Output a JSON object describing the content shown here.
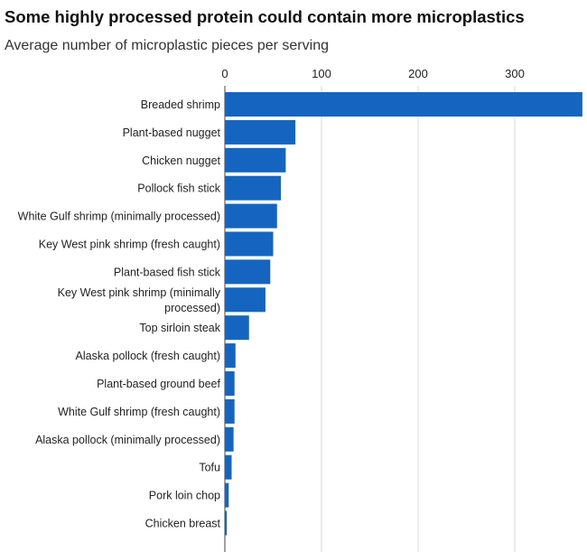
{
  "title": "Some highly processed protein could contain more microplastics",
  "subtitle": "Average number of microplastic pieces per serving",
  "chart_data": {
    "type": "bar",
    "orientation": "horizontal",
    "title": "Some highly processed protein could contain more microplastics",
    "subtitle": "Average number of microplastic pieces per serving",
    "xlim": [
      0,
      370
    ],
    "xticks": [
      0,
      100,
      200,
      300
    ],
    "grid": true,
    "bar_color": "#1565c0",
    "categories": [
      "Breaded shrimp",
      "Plant-based nugget",
      "Chicken nugget",
      "Pollock fish stick",
      "White Gulf shrimp (minimally processed)",
      "Key West pink shrimp (fresh caught)",
      "Plant-based fish stick",
      "Key West pink shrimp (minimally processed)",
      "Top sirloin steak",
      "Alaska pollock (fresh caught)",
      "Plant-based ground beef",
      "White Gulf shrimp (fresh caught)",
      "Alaska pollock (minimally processed)",
      "Tofu",
      "Pork loin chop",
      "Chicken breast"
    ],
    "values": [
      370,
      73,
      63,
      58,
      54,
      50,
      47,
      42,
      25,
      11,
      10,
      10,
      9,
      7,
      4,
      2
    ]
  }
}
